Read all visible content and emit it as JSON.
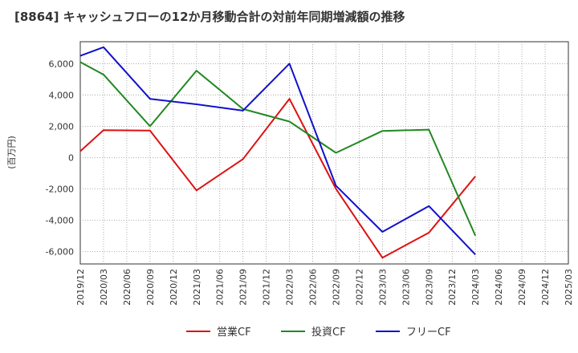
{
  "chart_data": {
    "type": "line",
    "title": "[8864]  キャッシュフローの12か月移動合計の対前年同期増減額の推移",
    "ylabel": "(百万円)",
    "xlabel": "",
    "ylim": [
      -6800,
      7400
    ],
    "yticks": [
      6000,
      4000,
      2000,
      0,
      -2000,
      -4000,
      -6000
    ],
    "ytick_labels": [
      "6,000",
      "4,000",
      "2,000",
      "0",
      "-2,000",
      "-4,000",
      "-6,000"
    ],
    "categories": [
      "2019/12",
      "2020/03",
      "2020/06",
      "2020/09",
      "2020/12",
      "2021/03",
      "2021/06",
      "2021/09",
      "2021/12",
      "2022/03",
      "2022/06",
      "2022/09",
      "2022/12",
      "2023/03",
      "2023/06",
      "2023/09",
      "2023/12",
      "2024/03",
      "2024/06",
      "2024/09",
      "2024/12",
      "2025/03"
    ],
    "grid": true,
    "legend_position": "bottom",
    "series": [
      {
        "name": "営業CF",
        "color": "#dd1111",
        "values": [
          400,
          1750,
          null,
          1720,
          null,
          -2100,
          null,
          -100,
          null,
          3750,
          null,
          -2000,
          null,
          -6400,
          null,
          -4800,
          null,
          -1200,
          null,
          null,
          null,
          null
        ]
      },
      {
        "name": "投資CF",
        "color": "#228822",
        "values": [
          6100,
          5300,
          null,
          2000,
          null,
          5550,
          null,
          3100,
          null,
          2300,
          null,
          300,
          null,
          1700,
          null,
          1780,
          null,
          -5000,
          null,
          null,
          null,
          null
        ]
      },
      {
        "name": "フリーCF",
        "color": "#1111cc",
        "values": [
          6500,
          7050,
          null,
          3750,
          null,
          3400,
          null,
          3000,
          null,
          6000,
          null,
          -1800,
          null,
          -4750,
          null,
          -3100,
          null,
          -6200,
          null,
          null,
          null,
          null
        ]
      }
    ]
  }
}
